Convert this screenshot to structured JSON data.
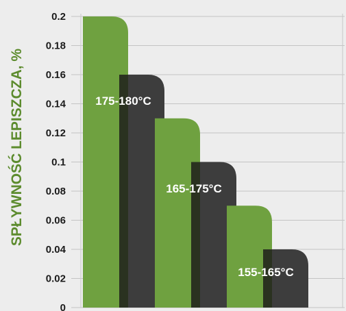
{
  "chart_data": {
    "type": "bar",
    "ylabel": "SPŁYWNOŚĆ LEPISZCZA, %",
    "ylim": [
      0,
      0.2
    ],
    "yticks": [
      "0",
      "0.02",
      "0.04",
      "0.06",
      "0.08",
      "0.1",
      "0.12",
      "0.14",
      "0.16",
      "0.18",
      "0.2"
    ],
    "grid": true,
    "groups": [
      "175-180°C",
      "165-175°C",
      "155-165°C"
    ],
    "series": [
      {
        "color": "#6fa140",
        "values": [
          0.2,
          0.13,
          0.07
        ]
      },
      {
        "color": "#3d3d3d",
        "values": [
          0.16,
          0.1,
          0.04
        ]
      }
    ]
  }
}
